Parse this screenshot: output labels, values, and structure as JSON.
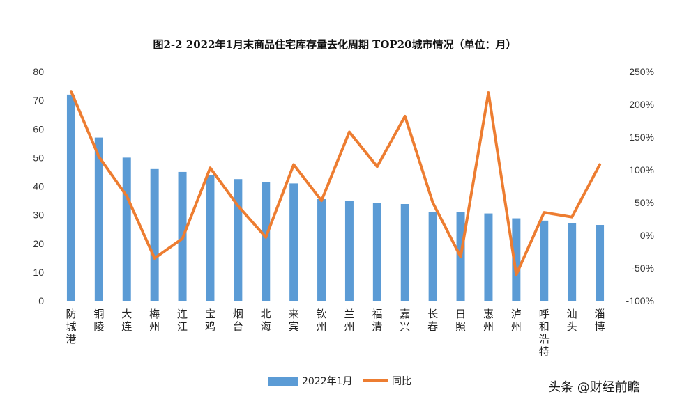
{
  "chart_data": {
    "type": "bar+line",
    "title": "图2-2 2022年1月末商品住宅库存量去化周期 TOP20城市情况（单位：月）",
    "categories": [
      "防城港",
      "铜陵",
      "大连",
      "梅州",
      "连江",
      "宝鸡",
      "烟台",
      "北海",
      "来宾",
      "钦州",
      "兰州",
      "福清",
      "嘉兴",
      "长春",
      "日照",
      "惠州",
      "泸州",
      "呼和浩特",
      "汕头",
      "淄博"
    ],
    "series": [
      {
        "name": "2022年1月",
        "type": "bar",
        "axis": "left",
        "color": "#5b9bd5",
        "values": [
          72,
          57,
          50,
          46,
          45,
          44,
          42.5,
          41.5,
          41,
          35.5,
          35,
          34.2,
          33.8,
          31,
          31,
          30.5,
          28.8,
          28,
          27,
          26.5
        ]
      },
      {
        "name": "同比",
        "type": "line",
        "axis": "right",
        "color": "#ed7d31",
        "values": [
          220,
          120,
          60,
          -35,
          -5,
          103,
          45,
          -3,
          108,
          53,
          158,
          105,
          182,
          50,
          -33,
          218,
          -60,
          35,
          28,
          108
        ]
      }
    ],
    "y_left": {
      "min": 0,
      "max": 80,
      "step": 10,
      "ticks": [
        "0",
        "10",
        "20",
        "30",
        "40",
        "50",
        "60",
        "70",
        "80"
      ]
    },
    "y_right": {
      "min": -100,
      "max": 250,
      "step": 50,
      "ticks": [
        "-100%",
        "-50%",
        "0%",
        "50%",
        "100%",
        "150%",
        "200%",
        "250%"
      ]
    },
    "grid": false,
    "legend_position": "bottom"
  },
  "watermark": "头条 @财经前瞻"
}
